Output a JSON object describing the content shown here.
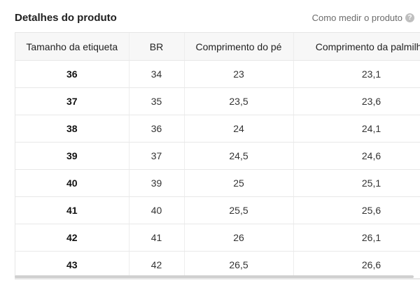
{
  "header": {
    "title": "Detalhes do produto",
    "how_to_measure": "Como medir o produto",
    "help_icon_glyph": "?"
  },
  "table": {
    "columns": [
      "Tamanho da etiqueta",
      "BR",
      "Comprimento do pé",
      "Comprimento da palmilha"
    ],
    "rows": [
      [
        "36",
        "34",
        "23",
        "23,1"
      ],
      [
        "37",
        "35",
        "23,5",
        "23,6"
      ],
      [
        "38",
        "36",
        "24",
        "24,1"
      ],
      [
        "39",
        "37",
        "24,5",
        "24,6"
      ],
      [
        "40",
        "39",
        "25",
        "25,1"
      ],
      [
        "41",
        "40",
        "25,5",
        "25,6"
      ],
      [
        "42",
        "41",
        "26",
        "26,1"
      ],
      [
        "43",
        "42",
        "26,5",
        "26,6"
      ]
    ]
  }
}
